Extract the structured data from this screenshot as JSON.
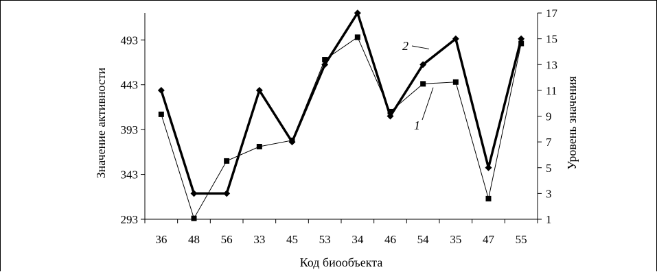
{
  "chart_data": {
    "type": "line",
    "xlabel": "Код биообъекта",
    "ylabel_left": "Значение активности",
    "ylabel_right": "Уровень значения",
    "categories": [
      "36",
      "48",
      "56",
      "33",
      "45",
      "53",
      "34",
      "46",
      "54",
      "35",
      "47",
      "55"
    ],
    "left_axis": {
      "ylim": [
        293,
        523
      ],
      "ticks": [
        293,
        343,
        393,
        443,
        493
      ]
    },
    "right_axis": {
      "ylim": [
        1,
        17
      ],
      "ticks": [
        1,
        3,
        5,
        7,
        9,
        11,
        13,
        15,
        17
      ]
    },
    "series": [
      {
        "name": "1",
        "axis": "left",
        "marker": "square",
        "line_weight": "thin",
        "values": [
          410,
          294,
          358,
          374,
          381,
          471,
          496,
          413,
          444,
          446,
          316,
          489
        ]
      },
      {
        "name": "2",
        "axis": "right",
        "marker": "diamond",
        "line_weight": "thick",
        "values": [
          11,
          3,
          3,
          11,
          7,
          13,
          17,
          9,
          13,
          15,
          5,
          15
        ]
      }
    ],
    "grid": false,
    "legend": "inline labels next to lines"
  }
}
